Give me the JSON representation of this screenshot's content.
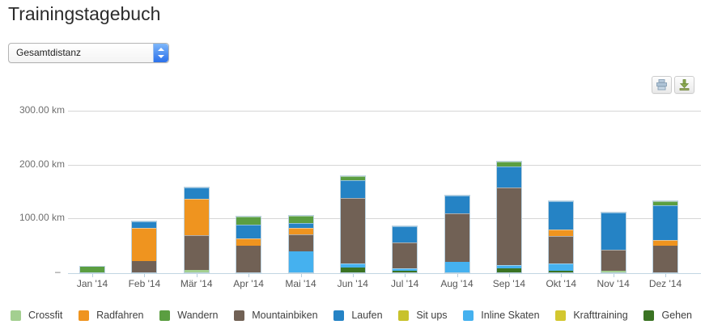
{
  "page": {
    "title": "Trainingstagebuch"
  },
  "controls": {
    "report_select": {
      "value": "Gesamtdistanz"
    },
    "print_button": {
      "icon": "printer-icon"
    },
    "export_button": {
      "icon": "download-icon"
    }
  },
  "chart_data": {
    "type": "bar",
    "stacked": true,
    "unit": "km",
    "ylim": [
      0,
      300
    ],
    "grid": true,
    "legend_position": "bottom",
    "yticks": [
      {
        "value": 300,
        "label": "300.00 km"
      },
      {
        "value": 200,
        "label": "200.00 km"
      },
      {
        "value": 100,
        "label": "100.00 km"
      },
      {
        "value": 0,
        "label": "–"
      }
    ],
    "categories": [
      "Jan '14",
      "Feb '14",
      "Mär '14",
      "Apr '14",
      "Mai '14",
      "Jun '14",
      "Jul '14",
      "Aug '14",
      "Sep '14",
      "Okt '14",
      "Nov '14",
      "Dez '14"
    ],
    "series_legend": [
      {
        "name": "Crossfit",
        "color": "#a3cf90"
      },
      {
        "name": "Radfahren",
        "color": "#ef941f"
      },
      {
        "name": "Wandern",
        "color": "#5b9e41"
      },
      {
        "name": "Mountainbiken",
        "color": "#716155"
      },
      {
        "name": "Laufen",
        "color": "#2583c5"
      },
      {
        "name": "Sit ups",
        "color": "#c8c22c"
      },
      {
        "name": "Inline Skaten",
        "color": "#45b1ef"
      },
      {
        "name": "Krafttraining",
        "color": "#d3c72f"
      },
      {
        "name": "Gehen",
        "color": "#3a7323"
      }
    ],
    "bars": [
      {
        "month": "Jan '14",
        "segments": [
          {
            "series": "Wandern",
            "km": 10
          }
        ]
      },
      {
        "month": "Feb '14",
        "segments": [
          {
            "series": "Mountainbiken",
            "km": 21
          },
          {
            "series": "Radfahren",
            "km": 62
          },
          {
            "series": "Laufen",
            "km": 11
          }
        ]
      },
      {
        "month": "Mär '14",
        "segments": [
          {
            "series": "Crossfit",
            "km": 4
          },
          {
            "series": "Mountainbiken",
            "km": 65
          },
          {
            "series": "Radfahren",
            "km": 67
          },
          {
            "series": "Laufen",
            "km": 22
          }
        ]
      },
      {
        "month": "Apr '14",
        "segments": [
          {
            "series": "Mountainbiken",
            "km": 50
          },
          {
            "series": "Radfahren",
            "km": 13
          },
          {
            "series": "Laufen",
            "km": 25
          },
          {
            "series": "Wandern",
            "km": 16
          }
        ]
      },
      {
        "month": "Mai '14",
        "segments": [
          {
            "series": "Inline Skaten",
            "km": 39
          },
          {
            "series": "Mountainbiken",
            "km": 32
          },
          {
            "series": "Radfahren",
            "km": 12
          },
          {
            "series": "Laufen",
            "km": 9
          },
          {
            "series": "Wandern",
            "km": 13
          }
        ]
      },
      {
        "month": "Jun '14",
        "segments": [
          {
            "series": "Gehen",
            "km": 9
          },
          {
            "series": "Inline Skaten",
            "km": 7
          },
          {
            "series": "Mountainbiken",
            "km": 122
          },
          {
            "series": "Laufen",
            "km": 33
          },
          {
            "series": "Wandern",
            "km": 7
          }
        ]
      },
      {
        "month": "Jul '14",
        "segments": [
          {
            "series": "Gehen",
            "km": 3
          },
          {
            "series": "Inline Skaten",
            "km": 5
          },
          {
            "series": "Mountainbiken",
            "km": 47
          },
          {
            "series": "Laufen",
            "km": 31
          }
        ]
      },
      {
        "month": "Aug '14",
        "segments": [
          {
            "series": "Inline Skaten",
            "km": 20
          },
          {
            "series": "Mountainbiken",
            "km": 89
          },
          {
            "series": "Laufen",
            "km": 34
          }
        ]
      },
      {
        "month": "Sep '14",
        "segments": [
          {
            "series": "Gehen",
            "km": 7
          },
          {
            "series": "Inline Skaten",
            "km": 6
          },
          {
            "series": "Mountainbiken",
            "km": 144
          },
          {
            "series": "Laufen",
            "km": 40
          },
          {
            "series": "Wandern",
            "km": 8
          }
        ]
      },
      {
        "month": "Okt '14",
        "segments": [
          {
            "series": "Gehen",
            "km": 3
          },
          {
            "series": "Inline Skaten",
            "km": 14
          },
          {
            "series": "Mountainbiken",
            "km": 50
          },
          {
            "series": "Radfahren",
            "km": 13
          },
          {
            "series": "Laufen",
            "km": 52
          }
        ]
      },
      {
        "month": "Nov '14",
        "segments": [
          {
            "series": "Crossfit",
            "km": 3
          },
          {
            "series": "Mountainbiken",
            "km": 39
          },
          {
            "series": "Laufen",
            "km": 69
          }
        ]
      },
      {
        "month": "Dez '14",
        "segments": [
          {
            "series": "Mountainbiken",
            "km": 50
          },
          {
            "series": "Radfahren",
            "km": 10
          },
          {
            "series": "Laufen",
            "km": 64
          },
          {
            "series": "Wandern",
            "km": 8
          }
        ]
      }
    ]
  }
}
